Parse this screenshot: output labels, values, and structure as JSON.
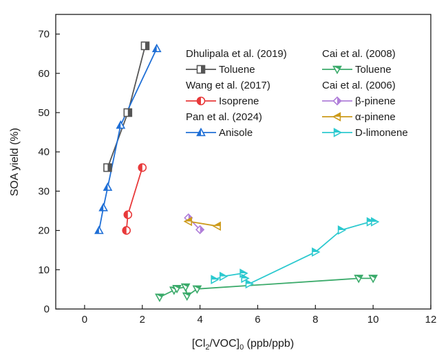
{
  "chart_data": {
    "type": "scatter",
    "xlabel": {
      "pre": "[Cl",
      "sub1": "2",
      "mid": "/VOC]",
      "sub2": "0",
      "post": " (ppb/ppb)"
    },
    "ylabel": "SOA yield (%)",
    "xlim": [
      -1,
      12
    ],
    "ylim": [
      0,
      75
    ],
    "xticks": [
      0,
      2,
      4,
      6,
      8,
      10,
      12
    ],
    "yticks": [
      0,
      10,
      20,
      30,
      40,
      50,
      60,
      70
    ],
    "legend_groups": [
      {
        "title": "Dhulipala et al. (2019)",
        "series": [
          "Toluene (Dhulipala)"
        ]
      },
      {
        "title": "Wang et al. (2017)",
        "series": [
          "Isoprene"
        ]
      },
      {
        "title": "Pan et al. (2024)",
        "series": [
          "Anisole"
        ]
      },
      {
        "title": "Cai et al. (2008)",
        "series": [
          "Toluene (Cai)"
        ]
      },
      {
        "title": "Cai et al. (2006)",
        "series": [
          "β-pinene",
          "α-pinene",
          "D-limonene"
        ]
      }
    ],
    "series": [
      {
        "key": "Toluene (Dhulipala)",
        "name": "Toluene",
        "color": "#555555",
        "marker": "square-half",
        "x": [
          0.8,
          1.5,
          2.1
        ],
        "y": [
          36,
          50,
          67
        ]
      },
      {
        "key": "Isoprene",
        "name": "Isoprene",
        "color": "#e8393a",
        "marker": "circle-half",
        "x": [
          1.45,
          1.5,
          2.0
        ],
        "y": [
          20,
          24,
          36
        ]
      },
      {
        "key": "Anisole",
        "name": "Anisole",
        "color": "#1f6fd6",
        "marker": "triangle-up-half",
        "x": [
          0.5,
          0.65,
          0.8,
          1.25,
          2.5
        ],
        "y": [
          20,
          25.8,
          31,
          46.8,
          66.3
        ]
      },
      {
        "key": "Toluene (Cai)",
        "name": "Toluene",
        "color": "#3aaa6a",
        "marker": "triangle-down-half",
        "x": [
          2.6,
          3.1,
          3.2,
          3.5,
          3.55,
          3.9,
          9.5,
          10.0
        ],
        "y": [
          3,
          4.8,
          5.2,
          5.6,
          3.3,
          5.1,
          7.8,
          7.8
        ]
      },
      {
        "key": "β-pinene",
        "name": "β-pinene",
        "color": "#b07fd9",
        "marker": "diamond-half",
        "x": [
          3.6,
          4.0
        ],
        "y": [
          23.2,
          20.2
        ]
      },
      {
        "key": "α-pinene",
        "name": "α-pinene",
        "color": "#cc9a1a",
        "marker": "triangle-left-half",
        "x": [
          3.6,
          4.6
        ],
        "y": [
          22.3,
          21.1
        ]
      },
      {
        "key": "D-limonene",
        "name": "D-limonene",
        "color": "#2cc9cf",
        "marker": "triangle-right-half",
        "x": [
          4.5,
          4.8,
          5.5,
          5.55,
          5.7,
          8.0,
          8.9,
          9.9,
          10.05
        ],
        "y": [
          7.5,
          8.3,
          9.1,
          7.8,
          6.4,
          14.5,
          20.1,
          22.2,
          22.2
        ]
      }
    ]
  }
}
